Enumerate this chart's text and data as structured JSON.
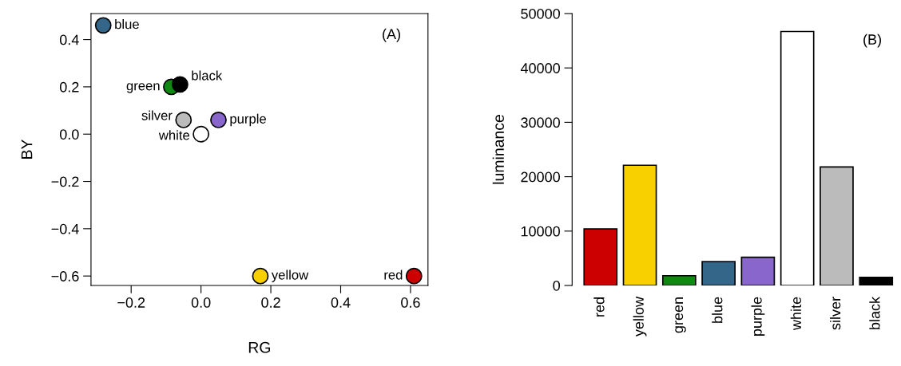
{
  "chart_data": [
    {
      "type": "scatter",
      "xlabel": "RG",
      "ylabel": "BY",
      "x": [
        -0.28,
        -0.085,
        -0.06,
        -0.05,
        0.05,
        0.0,
        0.17,
        0.61
      ],
      "values": [
        0.46,
        0.2,
        0.21,
        0.06,
        0.06,
        0.0,
        -0.6,
        -0.6
      ],
      "colors": [
        "#336688",
        "#118811",
        "#000000",
        "#bbbbbb",
        "#8866cc",
        "#ffffff",
        "#f8d000",
        "#cc0000"
      ],
      "xlim": [
        -0.315,
        0.65
      ],
      "ylim": [
        -0.64,
        0.51
      ],
      "xticks": [
        {
          "value": -0.2,
          "label": "−0.2"
        },
        {
          "value": 0.0,
          "label": "0.0"
        },
        {
          "value": 0.2,
          "label": "0.2"
        },
        {
          "value": 0.4,
          "label": "0.4"
        },
        {
          "value": 0.6,
          "label": "0.6"
        }
      ],
      "yticks": [
        {
          "value": -0.6,
          "label": "−0.6"
        },
        {
          "value": -0.4,
          "label": "−0.4"
        },
        {
          "value": -0.2,
          "label": "−0.2"
        },
        {
          "value": 0.0,
          "label": "0.0"
        },
        {
          "value": 0.2,
          "label": "0.2"
        },
        {
          "value": 0.4,
          "label": "0.4"
        }
      ],
      "annotations": [
        "(A)",
        {
          "text": "blue",
          "x": -0.28,
          "y": 0.46
        },
        {
          "text": "green",
          "x": -0.085,
          "y": 0.2
        },
        {
          "text": "black",
          "x": -0.06,
          "y": 0.21
        },
        {
          "text": "silver",
          "x": -0.05,
          "y": 0.06
        },
        {
          "text": "purple",
          "x": 0.05,
          "y": 0.06
        },
        {
          "text": "white",
          "x": 0.0,
          "y": 0.0
        },
        {
          "text": "yellow",
          "x": 0.17,
          "y": -0.6
        },
        {
          "text": "red",
          "x": 0.61,
          "y": -0.6
        }
      ]
    },
    {
      "type": "bar",
      "ylabel": "luminance",
      "categories": [
        "red",
        "yellow",
        "green",
        "blue",
        "purple",
        "white",
        "silver",
        "black"
      ],
      "values": [
        10400,
        22100,
        1800,
        4400,
        5200,
        46700,
        21800,
        1500
      ],
      "colors": [
        "#cc0000",
        "#f8d000",
        "#118811",
        "#336688",
        "#8866cc",
        "#ffffff",
        "#bbbbbb",
        "#000000"
      ],
      "ylim": [
        0,
        50000
      ],
      "yticks": [
        0,
        10000,
        20000,
        30000,
        40000,
        50000
      ],
      "annotations": [
        "(B)"
      ]
    }
  ]
}
